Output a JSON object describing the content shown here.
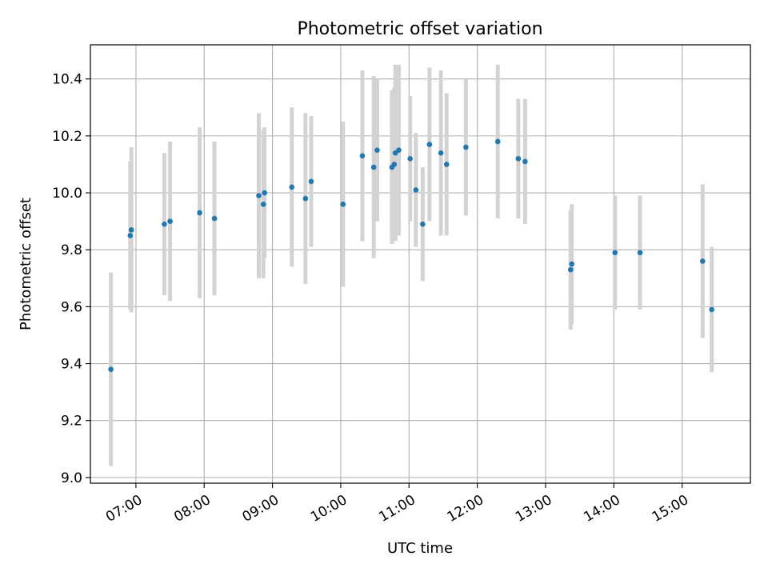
{
  "chart_data": {
    "type": "scatter",
    "title": "Photometric offset variation",
    "xlabel": "UTC time",
    "ylabel": "Photometric offset",
    "x_unit": "UTC hours",
    "xlim": [
      "06:20",
      "16:00"
    ],
    "ylim": [
      8.98,
      10.52
    ],
    "grid": true,
    "error_bar_color": "#d3d3d3",
    "marker_color": "#1f77b4",
    "x_ticks": [
      "07:00",
      "08:00",
      "09:00",
      "10:00",
      "11:00",
      "12:00",
      "13:00",
      "14:00",
      "15:00"
    ],
    "y_ticks": [
      "9.0",
      "9.2",
      "9.4",
      "9.6",
      "9.8",
      "10.0",
      "10.2",
      "10.4"
    ],
    "points": [
      {
        "x": "06:38",
        "y": 9.38,
        "err": 0.34
      },
      {
        "x": "06:55",
        "y": 9.85,
        "err": 0.26
      },
      {
        "x": "06:56",
        "y": 9.87,
        "err": 0.29
      },
      {
        "x": "07:25",
        "y": 9.89,
        "err": 0.25
      },
      {
        "x": "07:30",
        "y": 9.9,
        "err": 0.28
      },
      {
        "x": "07:56",
        "y": 9.93,
        "err": 0.3
      },
      {
        "x": "08:09",
        "y": 9.91,
        "err": 0.27
      },
      {
        "x": "08:48",
        "y": 9.99,
        "err": 0.29
      },
      {
        "x": "08:52",
        "y": 9.96,
        "err": 0.26
      },
      {
        "x": "08:53",
        "y": 10.0,
        "err": 0.23
      },
      {
        "x": "09:17",
        "y": 10.02,
        "err": 0.28
      },
      {
        "x": "09:29",
        "y": 9.98,
        "err": 0.3
      },
      {
        "x": "09:34",
        "y": 10.04,
        "err": 0.23
      },
      {
        "x": "10:02",
        "y": 9.96,
        "err": 0.29
      },
      {
        "x": "10:19",
        "y": 10.13,
        "err": 0.3
      },
      {
        "x": "10:29",
        "y": 10.09,
        "err": 0.32
      },
      {
        "x": "10:32",
        "y": 10.15,
        "err": 0.25
      },
      {
        "x": "10:45",
        "y": 10.09,
        "err": 0.27
      },
      {
        "x": "10:47",
        "y": 10.1,
        "err": 0.27
      },
      {
        "x": "10:48",
        "y": 10.14,
        "err": 0.31
      },
      {
        "x": "10:51",
        "y": 10.15,
        "err": 0.3
      },
      {
        "x": "11:01",
        "y": 10.12,
        "err": 0.22
      },
      {
        "x": "11:06",
        "y": 10.01,
        "err": 0.2
      },
      {
        "x": "11:12",
        "y": 9.89,
        "err": 0.2
      },
      {
        "x": "11:18",
        "y": 10.17,
        "err": 0.27
      },
      {
        "x": "11:28",
        "y": 10.14,
        "err": 0.29
      },
      {
        "x": "11:33",
        "y": 10.1,
        "err": 0.25
      },
      {
        "x": "11:50",
        "y": 10.16,
        "err": 0.24
      },
      {
        "x": "12:18",
        "y": 10.18,
        "err": 0.27
      },
      {
        "x": "12:36",
        "y": 10.12,
        "err": 0.21
      },
      {
        "x": "12:42",
        "y": 10.11,
        "err": 0.22
      },
      {
        "x": "13:22",
        "y": 9.73,
        "err": 0.21
      },
      {
        "x": "13:23",
        "y": 9.75,
        "err": 0.21
      },
      {
        "x": "14:01",
        "y": 9.79,
        "err": 0.2
      },
      {
        "x": "14:23",
        "y": 9.79,
        "err": 0.2
      },
      {
        "x": "15:18",
        "y": 9.76,
        "err": 0.27
      },
      {
        "x": "15:26",
        "y": 9.59,
        "err": 0.22
      }
    ]
  }
}
